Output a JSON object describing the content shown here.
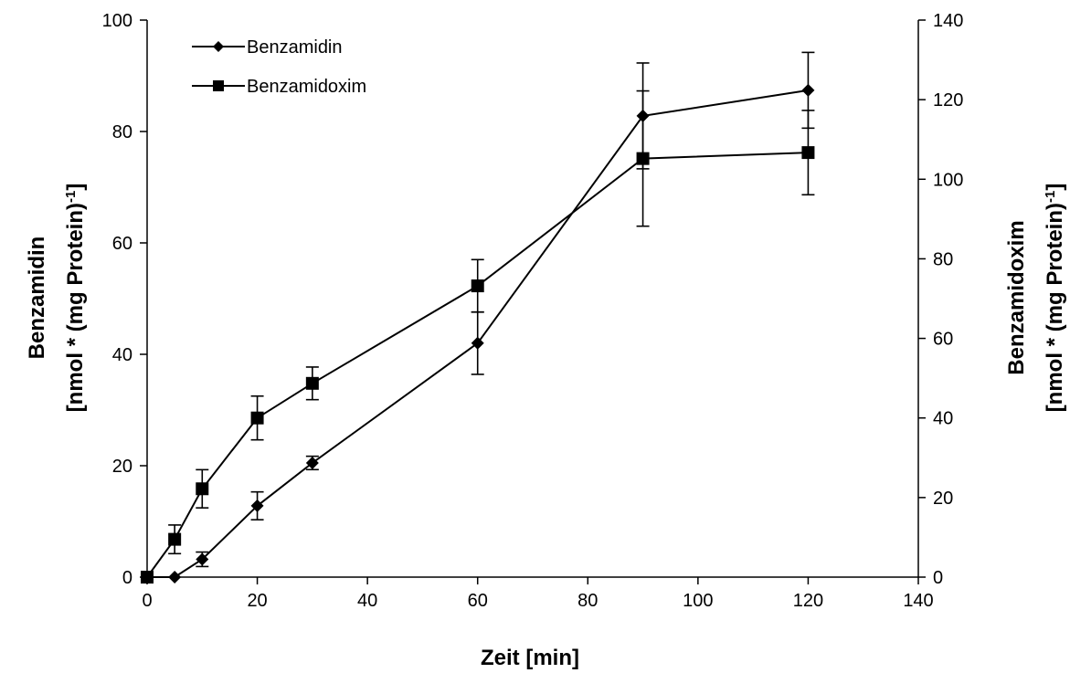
{
  "chart_data": {
    "type": "line",
    "x_axis": {
      "label": "Zeit [min]",
      "range": [
        0,
        140
      ],
      "ticks": [
        0,
        20,
        40,
        60,
        80,
        100,
        120,
        140
      ]
    },
    "y_axis_left": {
      "label_line1": "Benzamidin",
      "label_line2_prefix": "[nmol * (mg Protein)",
      "label_line2_sup": "-1",
      "label_line2_suffix": "]",
      "range": [
        0,
        100
      ],
      "ticks": [
        0,
        20,
        40,
        60,
        80,
        100
      ]
    },
    "y_axis_right": {
      "label_line1": "Benzamidoxim",
      "label_line2_prefix": "[nmol * (mg Protein)",
      "label_line2_sup": "-1",
      "label_line2_suffix": "]",
      "range": [
        0,
        140
      ],
      "ticks": [
        0,
        20,
        40,
        60,
        80,
        100,
        120,
        140
      ]
    },
    "legend_position": "top-left",
    "grid": false,
    "series": [
      {
        "name": "Benzamidin",
        "marker": "diamond",
        "axis": "left",
        "x": [
          0,
          5,
          10,
          20,
          30,
          60,
          90,
          120
        ],
        "y": [
          0,
          0,
          3.2,
          12.8,
          20.5,
          42,
          82.8,
          87.4
        ],
        "err": [
          0,
          0,
          1.3,
          2.5,
          1.2,
          5.6,
          9.5,
          6.8
        ]
      },
      {
        "name": "Benzamidoxim",
        "marker": "square",
        "axis": "right",
        "x": [
          0,
          5,
          10,
          20,
          30,
          60,
          90,
          120
        ],
        "y": [
          0,
          9.5,
          22.2,
          40,
          48.7,
          73.2,
          105.2,
          106.7
        ],
        "err": [
          0,
          3.6,
          4.8,
          5.5,
          4.1,
          6.6,
          17,
          10.6
        ]
      }
    ]
  }
}
